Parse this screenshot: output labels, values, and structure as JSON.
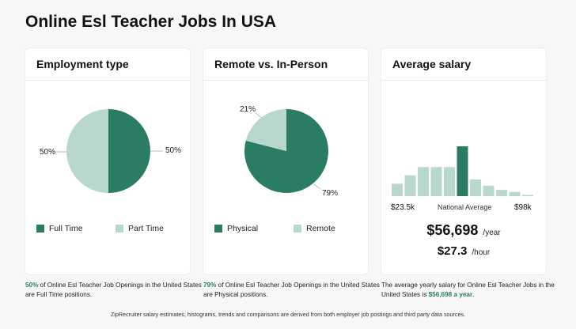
{
  "title": "Online Esl Teacher Jobs In USA",
  "colors": {
    "primary": "#2a7d64",
    "secondary": "#b8d8cd"
  },
  "chart_data": [
    {
      "type": "pie",
      "title": "Employment type",
      "slices": [
        {
          "name": "Full Time",
          "value": 50,
          "label": "50%"
        },
        {
          "name": "Part Time",
          "value": 50,
          "label": "50%"
        }
      ],
      "legend": "bottom"
    },
    {
      "type": "pie",
      "title": "Remote vs. In-Person",
      "slices": [
        {
          "name": "Physical",
          "value": 79,
          "label": "79%"
        },
        {
          "name": "Remote",
          "value": 21,
          "label": "21%"
        }
      ],
      "legend": "bottom"
    },
    {
      "type": "bar",
      "title": "Average salary",
      "values": [
        3,
        5,
        7,
        7,
        7,
        12,
        4,
        2.5,
        1.5,
        1,
        0.3
      ],
      "highlight_index": 5,
      "xlabel_min": "$23.5k",
      "xlabel_mid": "National Average",
      "xlabel_max": "$98k",
      "yearly": "$56,698",
      "yearly_unit": "/year",
      "hourly": "$27.3",
      "hourly_unit": "/hour"
    }
  ],
  "descriptions": {
    "employment": {
      "highlight": "50%",
      "text": " of Online Esl Teacher Job Openings in the United States are Full Time positions."
    },
    "remote": {
      "highlight": "79%",
      "text": " of Online Esl Teacher Job Openings in the United States are Physical positions."
    },
    "salary": {
      "text": "The average yearly salary for Online Esl Teacher Jobs in the United States is ",
      "highlight": "$56,698 a year",
      "end": "."
    }
  },
  "footer": "ZipRecruiter salary estimates, histograms, trends and comparisons are derived from both employer job postings and third party data sources."
}
